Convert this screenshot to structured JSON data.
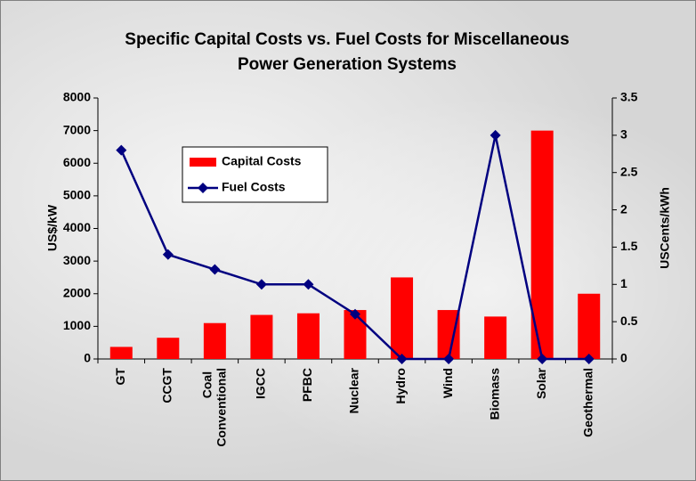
{
  "chart_data": {
    "type": "bar_line",
    "title": [
      "Specific Capital Costs vs. Fuel Costs for Miscellaneous",
      "Power Generation Systems"
    ],
    "ylabel": "US$/kW",
    "y2label": "USCents/kWh",
    "categories": [
      "GT",
      "CCGT",
      "Coal Conventional",
      "IGCC",
      "PFBC",
      "Nuclear",
      "Hydro",
      "Wind",
      "Biomass",
      "Solar",
      "Geothermal"
    ],
    "series": [
      {
        "name": "Capital Costs",
        "type": "bar",
        "color": "#ff0000",
        "values": [
          370,
          650,
          1100,
          1350,
          1400,
          1500,
          2500,
          1500,
          1300,
          7000,
          2000
        ]
      },
      {
        "name": "Fuel Costs",
        "type": "line",
        "axis": "y2",
        "color": "#000080",
        "values": [
          2.8,
          1.4,
          1.2,
          1.0,
          1.0,
          0.6,
          0,
          0,
          3.0,
          0,
          0
        ]
      }
    ],
    "ylim": [
      0,
      8000
    ],
    "yticks": [
      0,
      1000,
      2000,
      3000,
      4000,
      5000,
      6000,
      7000,
      8000
    ],
    "y2lim": [
      0,
      3.5
    ],
    "y2ticks": [
      0,
      0.5,
      1,
      1.5,
      2,
      2.5,
      3,
      3.5
    ],
    "legend": "upper left"
  }
}
